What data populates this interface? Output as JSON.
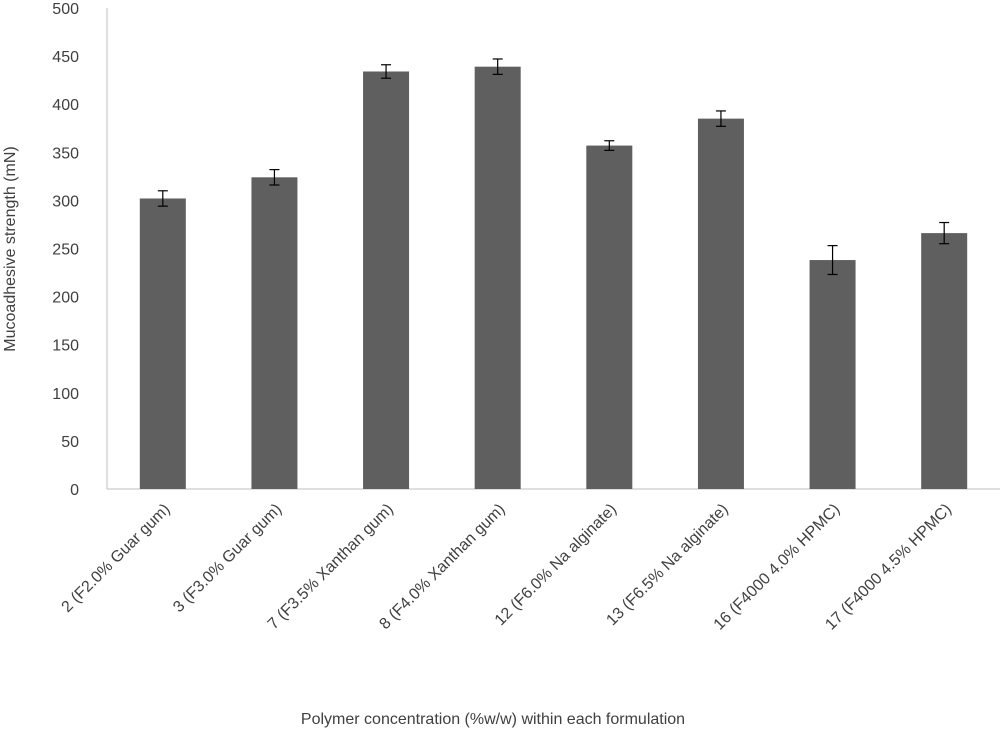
{
  "chart_data": {
    "type": "bar",
    "title": "",
    "xlabel": "Polymer concentration (%w/w) within each formulation",
    "ylabel": "Mucoadhesive strength (mN)",
    "ylim": [
      0,
      500
    ],
    "yticks": [
      0,
      50,
      100,
      150,
      200,
      250,
      300,
      350,
      400,
      450,
      500
    ],
    "grid": false,
    "legend": "none",
    "bar_color": "#5f5f5f",
    "axis_color": "#bfbfbf",
    "categories": [
      "2 (F2.0% Guar gum)",
      "3 (F3.0% Guar gum)",
      "7 (F3.5% Xanthan gum)",
      "8 (F4.0% Xanthan gum)",
      "12 (F6.0% Na alginate)",
      "13 (F6.5% Na alginate)",
      "16 (F4000 4.0% HPMC)",
      "17 (F4000 4.5% HPMC)"
    ],
    "values": [
      302,
      324,
      434,
      439,
      357,
      385,
      238,
      266
    ],
    "errors": [
      8,
      8,
      7,
      8,
      5,
      8,
      15,
      11
    ]
  }
}
